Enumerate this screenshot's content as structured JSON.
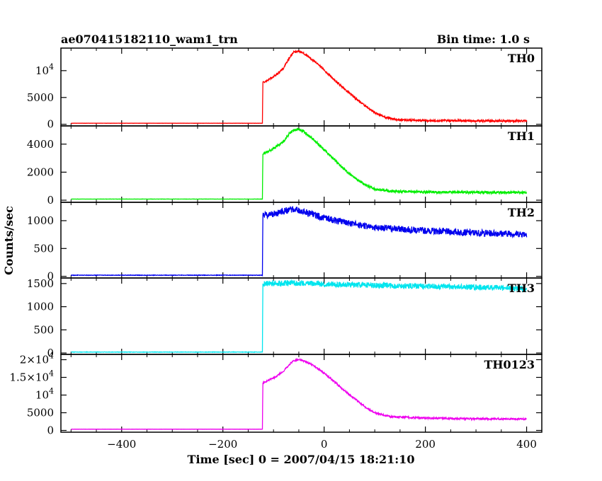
{
  "header": {
    "title": "ae070415182110_wam1_trn",
    "bin_time": "Bin time: 1.0 s"
  },
  "chart_data": {
    "type": "line",
    "xlabel": "Time [sec] 0 = 2007/04/15 18:21:10",
    "ylabel": "Counts/sec",
    "xlim": [
      -520,
      430
    ],
    "x_ticks": [
      -400,
      -200,
      0,
      200,
      400
    ],
    "grid": false,
    "panels": [
      {
        "name": "TH0",
        "color": "#ff0000",
        "ylim": [
          -300,
          14200
        ],
        "y_ticks": [
          {
            "value": 0,
            "label": "0"
          },
          {
            "value": 5000,
            "label": "5000"
          },
          {
            "value": 10000,
            "label": "10",
            "exp": "4"
          }
        ],
        "points": [
          [
            -500,
            200
          ],
          [
            -122,
            200
          ],
          [
            -121,
            7800
          ],
          [
            -110,
            8300
          ],
          [
            -95,
            9200
          ],
          [
            -80,
            10500
          ],
          [
            -70,
            12200
          ],
          [
            -60,
            13500
          ],
          [
            -50,
            13600
          ],
          [
            -40,
            13200
          ],
          [
            -20,
            11800
          ],
          [
            0,
            10100
          ],
          [
            20,
            8300
          ],
          [
            40,
            6600
          ],
          [
            60,
            5000
          ],
          [
            80,
            3500
          ],
          [
            100,
            2200
          ],
          [
            120,
            1300
          ],
          [
            150,
            800
          ],
          [
            200,
            700
          ],
          [
            300,
            650
          ],
          [
            400,
            620
          ]
        ],
        "noise": 180
      },
      {
        "name": "TH1",
        "color": "#00ee00",
        "ylim": [
          -150,
          5300
        ],
        "y_ticks": [
          {
            "value": 0,
            "label": "0"
          },
          {
            "value": 2000,
            "label": "2000"
          },
          {
            "value": 4000,
            "label": "4000"
          }
        ],
        "points": [
          [
            -500,
            80
          ],
          [
            -122,
            80
          ],
          [
            -121,
            3300
          ],
          [
            -110,
            3500
          ],
          [
            -95,
            3800
          ],
          [
            -80,
            4200
          ],
          [
            -70,
            4700
          ],
          [
            -60,
            5000
          ],
          [
            -50,
            5050
          ],
          [
            -40,
            4900
          ],
          [
            -20,
            4300
          ],
          [
            0,
            3600
          ],
          [
            20,
            2900
          ],
          [
            40,
            2200
          ],
          [
            60,
            1600
          ],
          [
            80,
            1100
          ],
          [
            100,
            800
          ],
          [
            130,
            650
          ],
          [
            200,
            580
          ],
          [
            300,
            560
          ],
          [
            400,
            540
          ]
        ],
        "noise": 90
      },
      {
        "name": "TH2",
        "color": "#0000ee",
        "ylim": [
          -30,
          1330
        ],
        "y_ticks": [
          {
            "value": 0,
            "label": "0"
          },
          {
            "value": 500,
            "label": "500"
          },
          {
            "value": 1000,
            "label": "1000"
          }
        ],
        "points": [
          [
            -500,
            20
          ],
          [
            -122,
            20
          ],
          [
            -121,
            1100
          ],
          [
            -100,
            1120
          ],
          [
            -80,
            1180
          ],
          [
            -60,
            1200
          ],
          [
            -40,
            1160
          ],
          [
            0,
            1050
          ],
          [
            50,
            950
          ],
          [
            100,
            880
          ],
          [
            200,
            820
          ],
          [
            300,
            780
          ],
          [
            400,
            760
          ]
        ],
        "noise": 60
      },
      {
        "name": "TH3",
        "color": "#00e5ee",
        "ylim": [
          -30,
          1620
        ],
        "y_ticks": [
          {
            "value": 0,
            "label": "0"
          },
          {
            "value": 500,
            "label": "500"
          },
          {
            "value": 1000,
            "label": "1000"
          },
          {
            "value": 1500,
            "label": "1500"
          }
        ],
        "points": [
          [
            -500,
            20
          ],
          [
            -122,
            20
          ],
          [
            -121,
            1500
          ],
          [
            -50,
            1510
          ],
          [
            0,
            1490
          ],
          [
            100,
            1460
          ],
          [
            200,
            1440
          ],
          [
            300,
            1420
          ],
          [
            400,
            1390
          ]
        ],
        "noise": 60
      },
      {
        "name": "TH0123",
        "color": "#ee00ee",
        "ylim": [
          -500,
          21500
        ],
        "y_ticks": [
          {
            "value": 0,
            "label": "0"
          },
          {
            "value": 5000,
            "label": "5000"
          },
          {
            "value": 10000,
            "label": "10",
            "exp": "4"
          },
          {
            "value": 15000,
            "label": "1.5×10",
            "exp": "4"
          },
          {
            "value": 20000,
            "label": "2×10",
            "exp": "4"
          }
        ],
        "points": [
          [
            -500,
            350
          ],
          [
            -122,
            350
          ],
          [
            -121,
            13500
          ],
          [
            -110,
            14200
          ],
          [
            -95,
            15200
          ],
          [
            -80,
            16800
          ],
          [
            -70,
            18500
          ],
          [
            -60,
            19700
          ],
          [
            -50,
            20000
          ],
          [
            -40,
            19700
          ],
          [
            -20,
            18200
          ],
          [
            0,
            16200
          ],
          [
            20,
            13800
          ],
          [
            40,
            11300
          ],
          [
            60,
            9000
          ],
          [
            80,
            6800
          ],
          [
            100,
            5000
          ],
          [
            130,
            3900
          ],
          [
            200,
            3500
          ],
          [
            300,
            3300
          ],
          [
            400,
            3200
          ]
        ],
        "noise": 250
      }
    ]
  }
}
